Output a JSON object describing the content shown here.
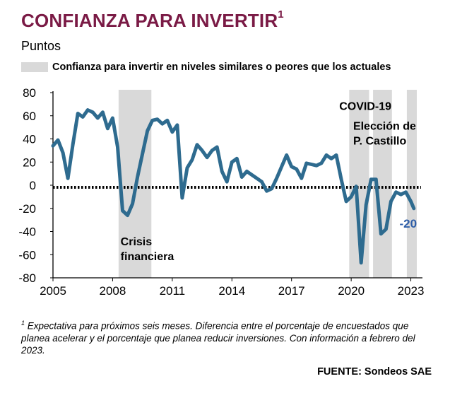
{
  "header": {
    "title": "CONFIANZA PARA INVERTIR",
    "title_sup": "1",
    "subtitle": "Puntos"
  },
  "legend": {
    "label": "Confianza para invertir en niveles similares o peores que los actuales",
    "swatch_color": "#d9d9d9"
  },
  "footnote": {
    "marker": "1",
    "text": "Expectativa para próximos seis meses. Diferencia entre el porcentaje de encuestados que planea acelerar y el porcentaje que planea reducir inversiones. Con información a febrero del 2023."
  },
  "source": "FUENTE: Sondeos SAE",
  "colors": {
    "title": "#7a1a45",
    "line": "#2e6b8f",
    "last_label": "#2e5ea8",
    "shade": "#d9d9d9"
  },
  "chart_data": {
    "type": "line",
    "x_unit": "year",
    "xlim": [
      2005,
      2023.3
    ],
    "ylim": [
      -80,
      80
    ],
    "x_ticks": [
      "2005",
      "2008",
      "2011",
      "2014",
      "2017",
      "2020",
      "2023"
    ],
    "y_ticks": [
      "80",
      "60",
      "40",
      "20",
      "0",
      "-20",
      "-40",
      "-60",
      "-80"
    ],
    "zero_line": "dotted",
    "shaded_periods": [
      {
        "x_start": 2008.3,
        "x_end": 2009.95,
        "label": "Crisis financiera",
        "label_lines": [
          "Crisis",
          "financiera"
        ]
      },
      {
        "x_start": 2019.9,
        "x_end": 2020.9,
        "label": "COVID-19",
        "label_lines": [
          "COVID-19"
        ]
      },
      {
        "x_start": 2021.1,
        "x_end": 2022.05,
        "label": "Elección de P. Castillo",
        "label_lines": [
          "Elección de",
          "P. Castillo"
        ]
      },
      {
        "x_start": 2022.8,
        "x_end": 2023.3,
        "label": "",
        "label_lines": []
      }
    ],
    "series": [
      {
        "points": [
          [
            2005.0,
            34
          ],
          [
            2005.25,
            39
          ],
          [
            2005.5,
            28
          ],
          [
            2005.75,
            6
          ],
          [
            2006.0,
            35
          ],
          [
            2006.25,
            62
          ],
          [
            2006.5,
            59
          ],
          [
            2006.75,
            65
          ],
          [
            2007.0,
            63
          ],
          [
            2007.25,
            58
          ],
          [
            2007.5,
            63
          ],
          [
            2007.75,
            49
          ],
          [
            2008.0,
            58
          ],
          [
            2008.25,
            33
          ],
          [
            2008.5,
            -22
          ],
          [
            2008.75,
            -26
          ],
          [
            2009.0,
            -16
          ],
          [
            2009.25,
            7
          ],
          [
            2009.5,
            27
          ],
          [
            2009.75,
            47
          ],
          [
            2010.0,
            56
          ],
          [
            2010.25,
            57
          ],
          [
            2010.5,
            53
          ],
          [
            2010.75,
            56
          ],
          [
            2011.0,
            46
          ],
          [
            2011.25,
            52
          ],
          [
            2011.5,
            -11
          ],
          [
            2011.75,
            15
          ],
          [
            2012.0,
            22
          ],
          [
            2012.25,
            35
          ],
          [
            2012.5,
            30
          ],
          [
            2012.75,
            24
          ],
          [
            2013.0,
            30
          ],
          [
            2013.25,
            33
          ],
          [
            2013.5,
            12
          ],
          [
            2013.75,
            3
          ],
          [
            2014.0,
            20
          ],
          [
            2014.25,
            23
          ],
          [
            2014.5,
            7
          ],
          [
            2014.75,
            12
          ],
          [
            2015.0,
            9
          ],
          [
            2015.25,
            6
          ],
          [
            2015.5,
            3
          ],
          [
            2015.75,
            -5
          ],
          [
            2016.0,
            -3
          ],
          [
            2016.25,
            6
          ],
          [
            2016.5,
            16
          ],
          [
            2016.75,
            26
          ],
          [
            2017.0,
            16
          ],
          [
            2017.25,
            14
          ],
          [
            2017.5,
            6
          ],
          [
            2017.75,
            19
          ],
          [
            2018.0,
            18
          ],
          [
            2018.25,
            17
          ],
          [
            2018.5,
            19
          ],
          [
            2018.75,
            26
          ],
          [
            2019.0,
            23
          ],
          [
            2019.25,
            26
          ],
          [
            2019.5,
            5
          ],
          [
            2019.75,
            -14
          ],
          [
            2020.0,
            -10
          ],
          [
            2020.25,
            -1
          ],
          [
            2020.5,
            -67
          ],
          [
            2020.75,
            -17
          ],
          [
            2021.0,
            5
          ],
          [
            2021.25,
            5
          ],
          [
            2021.5,
            -42
          ],
          [
            2021.75,
            -38
          ],
          [
            2022.0,
            -14
          ],
          [
            2022.25,
            -6
          ],
          [
            2022.5,
            -8
          ],
          [
            2022.75,
            -6
          ],
          [
            2023.0,
            -14
          ],
          [
            2023.15,
            -20
          ]
        ]
      }
    ],
    "last_value_label": "-20"
  }
}
